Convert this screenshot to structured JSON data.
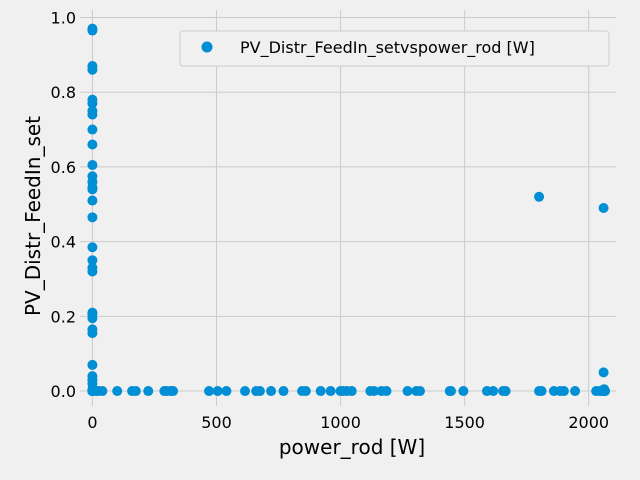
{
  "chart_data": {
    "type": "scatter",
    "title": "",
    "xlabel": "power_rod [W]",
    "ylabel": "PV_Distr_FeedIn_set",
    "xlim": [
      -50,
      2110
    ],
    "ylim": [
      -0.04,
      1.02
    ],
    "xticks": [
      0,
      500,
      1000,
      1500,
      2000
    ],
    "xtick_labels": [
      "0",
      "500",
      "1000",
      "1500",
      "2000"
    ],
    "yticks": [
      0.0,
      0.2,
      0.4,
      0.6,
      0.8,
      1.0
    ],
    "ytick_labels": [
      "0.0",
      "0.2",
      "0.4",
      "0.6",
      "0.8",
      "1.0"
    ],
    "grid": true,
    "legend_position": "top-right",
    "series": [
      {
        "name": "PV_Distr_FeedIn_setvspower_rod [W]",
        "color": "#008fd5",
        "x": [
          0,
          0,
          0,
          0,
          0,
          0,
          0,
          0,
          0,
          0,
          0,
          0,
          0,
          0,
          0,
          0,
          0,
          0,
          0,
          0,
          0,
          0,
          0,
          0,
          0,
          0,
          0,
          0,
          0,
          0,
          0,
          0,
          0,
          0,
          0,
          0,
          0,
          0,
          0,
          0,
          5,
          15,
          25,
          40,
          100,
          160,
          175,
          225,
          290,
          300,
          315,
          325,
          470,
          505,
          540,
          615,
          660,
          675,
          720,
          770,
          845,
          860,
          920,
          960,
          1000,
          1010,
          1025,
          1045,
          1120,
          1135,
          1165,
          1185,
          1270,
          1305,
          1320,
          1440,
          1445,
          1495,
          1590,
          1615,
          1655,
          1665,
          1800,
          1810,
          1860,
          1885,
          1900,
          1945,
          2030,
          2045,
          2055,
          2060,
          2062,
          2063,
          2065,
          2066,
          2060,
          2062,
          1800,
          2060
        ],
        "y": [
          0.97,
          0.965,
          0.87,
          0.86,
          0.78,
          0.77,
          0.75,
          0.74,
          0.7,
          0.66,
          0.605,
          0.575,
          0.56,
          0.545,
          0.54,
          0.51,
          0.465,
          0.385,
          0.35,
          0.33,
          0.32,
          0.21,
          0.205,
          0.195,
          0.165,
          0.155,
          0.07,
          0.04,
          0.03,
          0.02,
          0.005,
          0.0,
          0.0,
          0.0,
          0.0,
          0.0,
          0.0,
          0.0,
          0.0,
          0.0,
          0.0,
          0.0,
          0.0,
          0.0,
          0.0,
          0.0,
          0.0,
          0.0,
          0.0,
          0.0,
          0.0,
          0.0,
          0.0,
          0.0,
          0.0,
          0.0,
          0.0,
          0.0,
          0.0,
          0.0,
          0.0,
          0.0,
          0.0,
          0.0,
          0.0,
          0.0,
          0.0,
          0.0,
          0.0,
          0.0,
          0.0,
          0.0,
          0.0,
          0.0,
          0.0,
          0.0,
          0.0,
          0.0,
          0.0,
          0.0,
          0.0,
          0.0,
          0.0,
          0.0,
          0.0,
          0.0,
          0.0,
          0.0,
          0.0,
          0.0,
          0.0,
          0.0,
          0.0,
          0.0,
          0.0,
          0.0,
          0.05,
          0.005,
          0.52,
          0.49
        ]
      }
    ]
  }
}
